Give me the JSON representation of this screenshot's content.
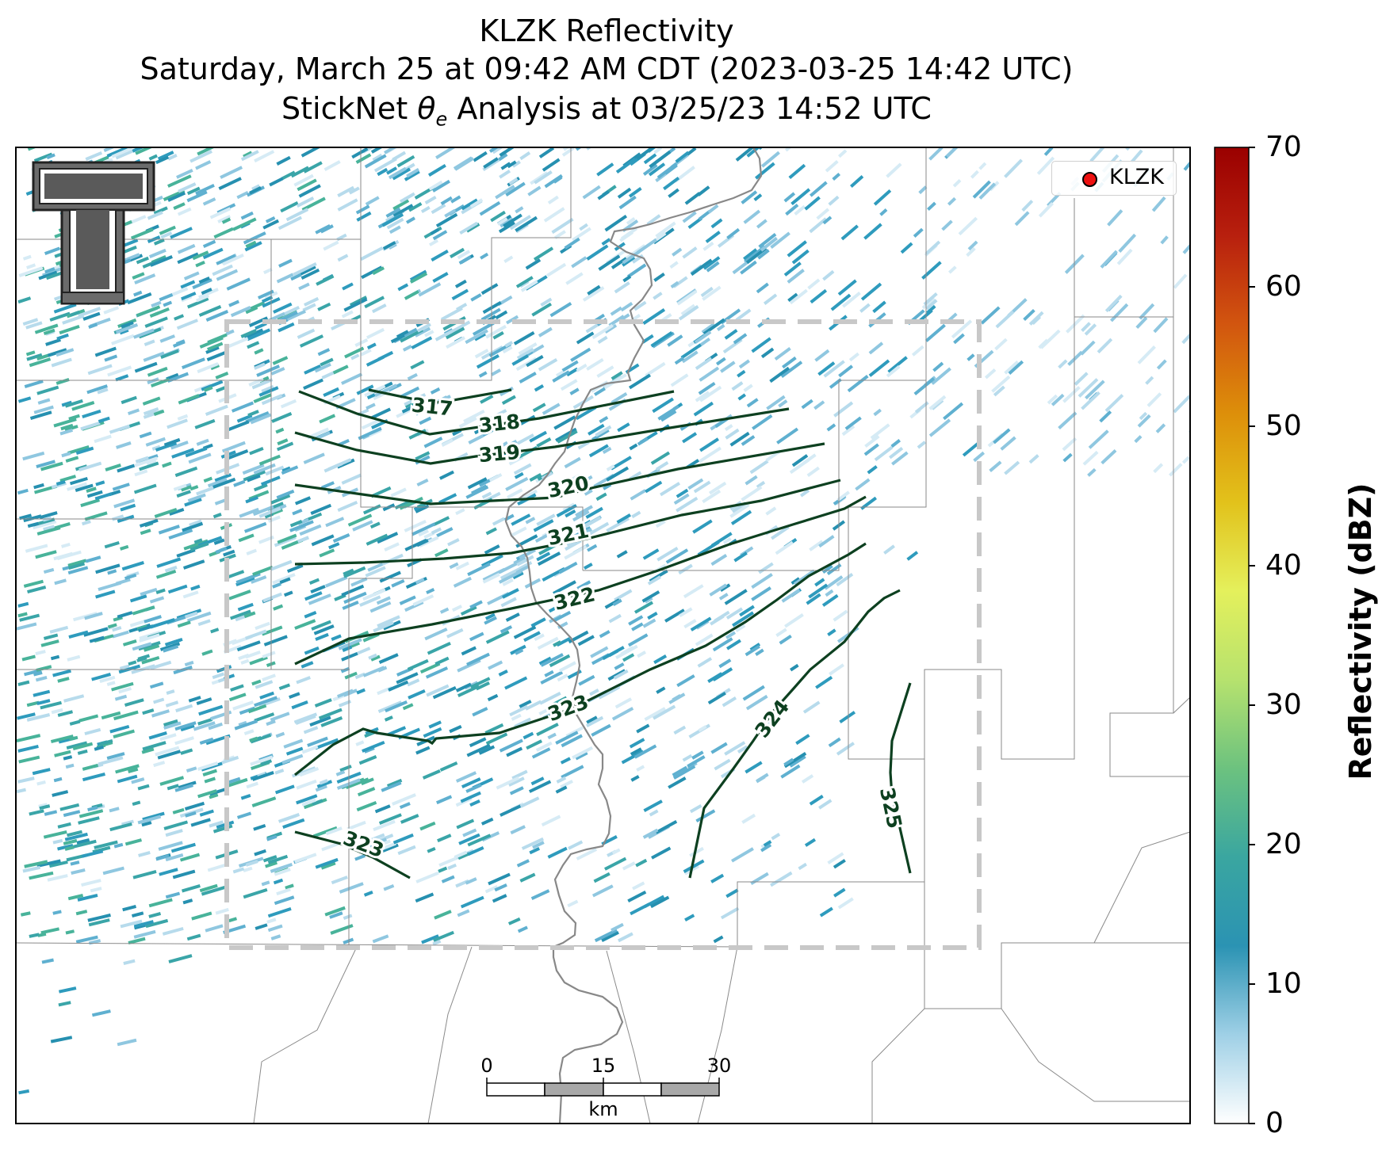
{
  "title": {
    "line1": "KLZK Reflectivity",
    "line2": "Saturday, March 25 at 09:42 AM CDT (2023-03-25 14:42 UTC)",
    "line3_prefix": "StickNet ",
    "line3_symbol": "θ",
    "line3_subscript": "e",
    "line3_suffix": " Analysis at 03/25/23 14:52 UTC"
  },
  "legend": {
    "label": "KLZK",
    "marker_color": "#ee1111"
  },
  "colorbar": {
    "label": "Reflectivity (dBZ)",
    "ticks": [
      "0",
      "10",
      "20",
      "30",
      "40",
      "50",
      "60",
      "70"
    ],
    "min": 0,
    "max": 70,
    "colors": [
      "#ffffff",
      "#9fd0e6",
      "#2b93b3",
      "#3aa6a0",
      "#6cc27f",
      "#b6e26e",
      "#e4f05c",
      "#e2c21b",
      "#dd8f0a",
      "#d2560f",
      "#b8200e",
      "#9a0000"
    ]
  },
  "scale_bar": {
    "ticks": [
      "0",
      "15",
      "30"
    ],
    "unit": "km"
  },
  "contour_labels": [
    "317",
    "318",
    "319",
    "320",
    "321",
    "322",
    "323",
    "323",
    "324",
    "325"
  ],
  "contour_color": "#0d4020",
  "logo": {
    "text": "T"
  }
}
